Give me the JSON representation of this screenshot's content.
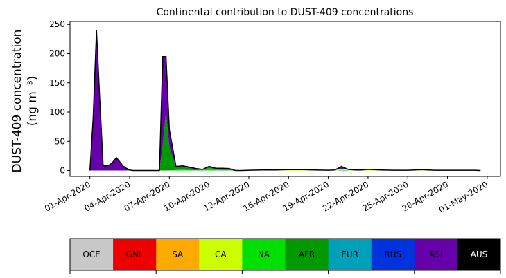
{
  "chart_data": {
    "type": "area",
    "title": "Continental contribution to DUST-409 concentrations",
    "ylabel_line1": "DUST-409 concentration",
    "ylabel_line2": "(ng m⁻³)",
    "ylim": [
      -10,
      255
    ],
    "xlim_days": [
      -1.5,
      31.0
    ],
    "yticks": [
      0,
      50,
      100,
      150,
      200,
      250
    ],
    "xticks": [
      {
        "day": 0,
        "label": "01-Apr-2020"
      },
      {
        "day": 3,
        "label": "04-Apr-2020"
      },
      {
        "day": 6,
        "label": "07-Apr-2020"
      },
      {
        "day": 9,
        "label": "10-Apr-2020"
      },
      {
        "day": 12,
        "label": "13-Apr-2020"
      },
      {
        "day": 15,
        "label": "16-Apr-2020"
      },
      {
        "day": 18,
        "label": "19-Apr-2020"
      },
      {
        "day": 21,
        "label": "22-Apr-2020"
      },
      {
        "day": 24,
        "label": "25-Apr-2020"
      },
      {
        "day": 27,
        "label": "28-Apr-2020"
      },
      {
        "day": 30,
        "label": "01-May-2020"
      }
    ],
    "x": [
      0,
      0.25,
      0.5,
      0.75,
      1,
      1.25,
      1.5,
      1.75,
      2,
      2.25,
      2.5,
      2.75,
      3,
      3.25,
      3.5,
      3.75,
      4,
      4.25,
      4.5,
      4.75,
      5,
      5.25,
      5.5,
      5.75,
      6,
      6.5,
      7,
      7.5,
      8,
      8.5,
      9,
      9.5,
      10,
      10.5,
      11,
      11.5,
      12,
      13,
      14,
      15,
      16,
      17,
      18,
      18.5,
      19,
      19.5,
      20,
      20.5,
      21,
      22,
      23,
      24,
      24.5,
      25,
      26,
      27,
      28,
      29,
      29.5
    ],
    "series": [
      {
        "name": "NA",
        "color": "#00e000",
        "values": [
          0,
          0,
          0,
          0,
          0,
          0,
          0,
          0,
          0,
          0,
          0,
          0,
          0,
          0,
          0,
          0,
          0,
          0,
          0,
          0,
          0,
          0,
          0,
          0,
          0,
          1,
          2,
          1,
          0.5,
          1,
          4,
          2,
          1,
          0.5,
          0,
          0,
          0,
          0,
          0,
          0,
          0,
          0,
          0,
          0,
          1,
          0.5,
          0,
          0,
          0,
          0,
          0,
          0,
          0,
          0,
          0,
          0,
          0,
          0,
          0
        ]
      },
      {
        "name": "AFR",
        "color": "#009a00",
        "values": [
          0,
          0,
          0,
          0,
          0,
          0,
          0,
          0,
          0,
          0,
          0,
          0,
          0,
          0,
          0,
          0,
          0,
          0,
          0,
          0,
          0,
          0,
          45,
          100,
          40,
          6,
          5,
          3,
          2,
          1,
          1,
          1,
          1,
          1,
          0,
          0,
          0,
          0,
          0,
          0,
          0,
          0,
          0,
          0,
          0,
          0,
          0,
          0,
          0,
          0,
          0,
          0,
          0,
          0,
          0,
          0,
          0,
          0,
          0
        ]
      },
      {
        "name": "CA",
        "color": "#ccff00",
        "values": [
          0,
          0,
          0,
          0,
          0,
          0,
          0,
          0,
          0,
          0,
          0,
          0,
          0,
          0,
          0,
          0,
          0,
          0,
          0,
          0,
          0,
          0,
          0,
          0,
          0,
          0,
          0,
          0,
          0,
          0,
          0,
          0,
          0,
          0,
          0,
          0,
          0.5,
          1,
          1,
          1.5,
          1.5,
          1,
          0.5,
          1,
          2,
          1,
          1,
          1,
          2,
          1,
          0.5,
          0.5,
          1,
          1.5,
          0.5,
          0.5,
          0.5,
          0.5,
          0
        ]
      },
      {
        "name": "ASI",
        "color": "#6600aa",
        "values": [
          0,
          90,
          240,
          120,
          8,
          8,
          10,
          15,
          22,
          15,
          8,
          4,
          1,
          0,
          0,
          0,
          0,
          0,
          0,
          0,
          0,
          0,
          150,
          95,
          30,
          0,
          1,
          2,
          1,
          0,
          2,
          1,
          2,
          2,
          0,
          0,
          0,
          0,
          0,
          0,
          0,
          0,
          0,
          0,
          4,
          0.5,
          0,
          0,
          0,
          0,
          0,
          0,
          0,
          0,
          0,
          0,
          0,
          0,
          0
        ]
      }
    ],
    "legend": [
      {
        "label": "OCE",
        "color": "#c8c8c8",
        "text_color": "#000000"
      },
      {
        "label": "GNL",
        "color": "#ee0000",
        "text_color": "#000000"
      },
      {
        "label": "SA",
        "color": "#ffaa00",
        "text_color": "#000000"
      },
      {
        "label": "CA",
        "color": "#ccff00",
        "text_color": "#000000"
      },
      {
        "label": "NA",
        "color": "#00e000",
        "text_color": "#000000"
      },
      {
        "label": "AFR",
        "color": "#009a00",
        "text_color": "#000000"
      },
      {
        "label": "EUR",
        "color": "#00a0b8",
        "text_color": "#000000"
      },
      {
        "label": "RUS",
        "color": "#0033dd",
        "text_color": "#000000"
      },
      {
        "label": "ASI",
        "color": "#6600aa",
        "text_color": "#000000"
      },
      {
        "label": "AUS",
        "color": "#000000",
        "text_color": "#ffffff"
      }
    ],
    "grid": false
  }
}
